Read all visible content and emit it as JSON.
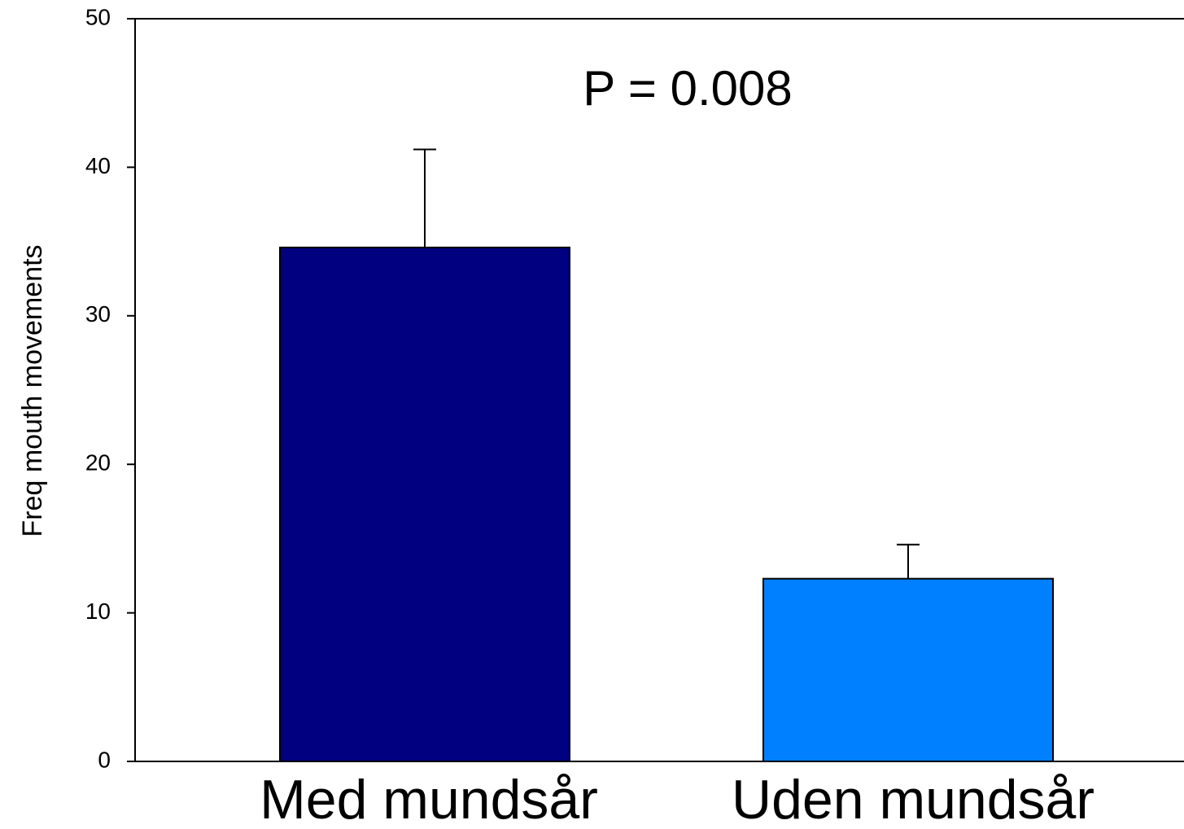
{
  "chart_data": {
    "type": "bar",
    "y_label": "Freq mouth movements",
    "annotation": "P = 0.008",
    "categories": [
      "Med mundsår",
      "Uden mundsår"
    ],
    "values": [
      34.6,
      12.3
    ],
    "errors": [
      6.6,
      2.3
    ],
    "colors": [
      "#000080",
      "#0080ff"
    ],
    "ylim": [
      0,
      50
    ],
    "yticks": [
      0,
      10,
      20,
      30,
      40,
      50
    ],
    "grid": false
  }
}
